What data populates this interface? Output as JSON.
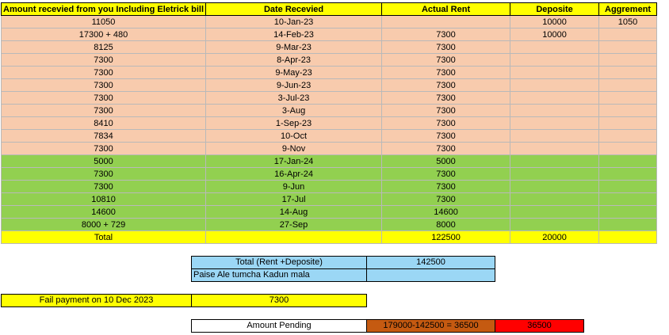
{
  "headers": [
    "Amount recevied from you Including Eletrick bill",
    "Date Recevied",
    "Actual Rent",
    "Deposite",
    "Aggrement"
  ],
  "rows": [
    {
      "style": "salmon",
      "cells": [
        "11050",
        "10-Jan-23",
        "",
        "10000",
        "1050"
      ]
    },
    {
      "style": "salmon",
      "cells": [
        "17300 + 480",
        "14-Feb-23",
        "7300",
        "10000",
        ""
      ]
    },
    {
      "style": "salmon",
      "cells": [
        "8125",
        "9-Mar-23",
        "7300",
        "",
        ""
      ]
    },
    {
      "style": "salmon",
      "cells": [
        "7300",
        "8-Apr-23",
        "7300",
        "",
        ""
      ]
    },
    {
      "style": "salmon",
      "cells": [
        "7300",
        "9-May-23",
        "7300",
        "",
        ""
      ]
    },
    {
      "style": "salmon",
      "cells": [
        "7300",
        "9-Jun-23",
        "7300",
        "",
        ""
      ]
    },
    {
      "style": "salmon",
      "cells": [
        "7300",
        "3-Jul-23",
        "7300",
        "",
        ""
      ]
    },
    {
      "style": "salmon",
      "cells": [
        "7300",
        "3-Aug",
        "7300",
        "",
        ""
      ]
    },
    {
      "style": "salmon",
      "cells": [
        "8410",
        "1-Sep-23",
        "7300",
        "",
        ""
      ]
    },
    {
      "style": "salmon",
      "cells": [
        "7834",
        "10-Oct",
        "7300",
        "",
        ""
      ]
    },
    {
      "style": "salmon",
      "cells": [
        "7300",
        "9-Nov",
        "7300",
        "",
        ""
      ]
    },
    {
      "style": "green",
      "cells": [
        "5000",
        "17-Jan-24",
        "5000",
        "",
        ""
      ]
    },
    {
      "style": "green",
      "cells": [
        "7300",
        "16-Apr-24",
        "7300",
        "",
        ""
      ]
    },
    {
      "style": "green",
      "cells": [
        "7300",
        "9-Jun",
        "7300",
        "",
        ""
      ]
    },
    {
      "style": "green",
      "cells": [
        "10810",
        "17-Jul",
        "7300",
        "",
        ""
      ]
    },
    {
      "style": "green",
      "cells": [
        "14600",
        "14-Aug",
        "14600",
        "",
        ""
      ]
    },
    {
      "style": "green",
      "cells": [
        "8000 + 729",
        "27-Sep",
        "8000",
        "",
        ""
      ]
    },
    {
      "style": "total",
      "cells": [
        "Total",
        "",
        "122500",
        "20000",
        ""
      ]
    }
  ],
  "summary": {
    "total_label": "Total (Rent +Deposite)",
    "total_value": "142500",
    "note_label": "Paise Ale tumcha Kadun mala",
    "note_value": ""
  },
  "fail_payment": {
    "label": "Fail payment on 10 Dec 2023",
    "value": "7300"
  },
  "pending": {
    "label": "Amount Pending",
    "formula": "179000-142500 = 36500",
    "value": "36500"
  },
  "colors": {
    "header_yellow": "#ffff00",
    "salmon": "#f8cbad",
    "green": "#92d050",
    "summary_blue": "#9bd7f5",
    "pending_brown": "#c55a11",
    "pending_red": "#ff0000"
  }
}
